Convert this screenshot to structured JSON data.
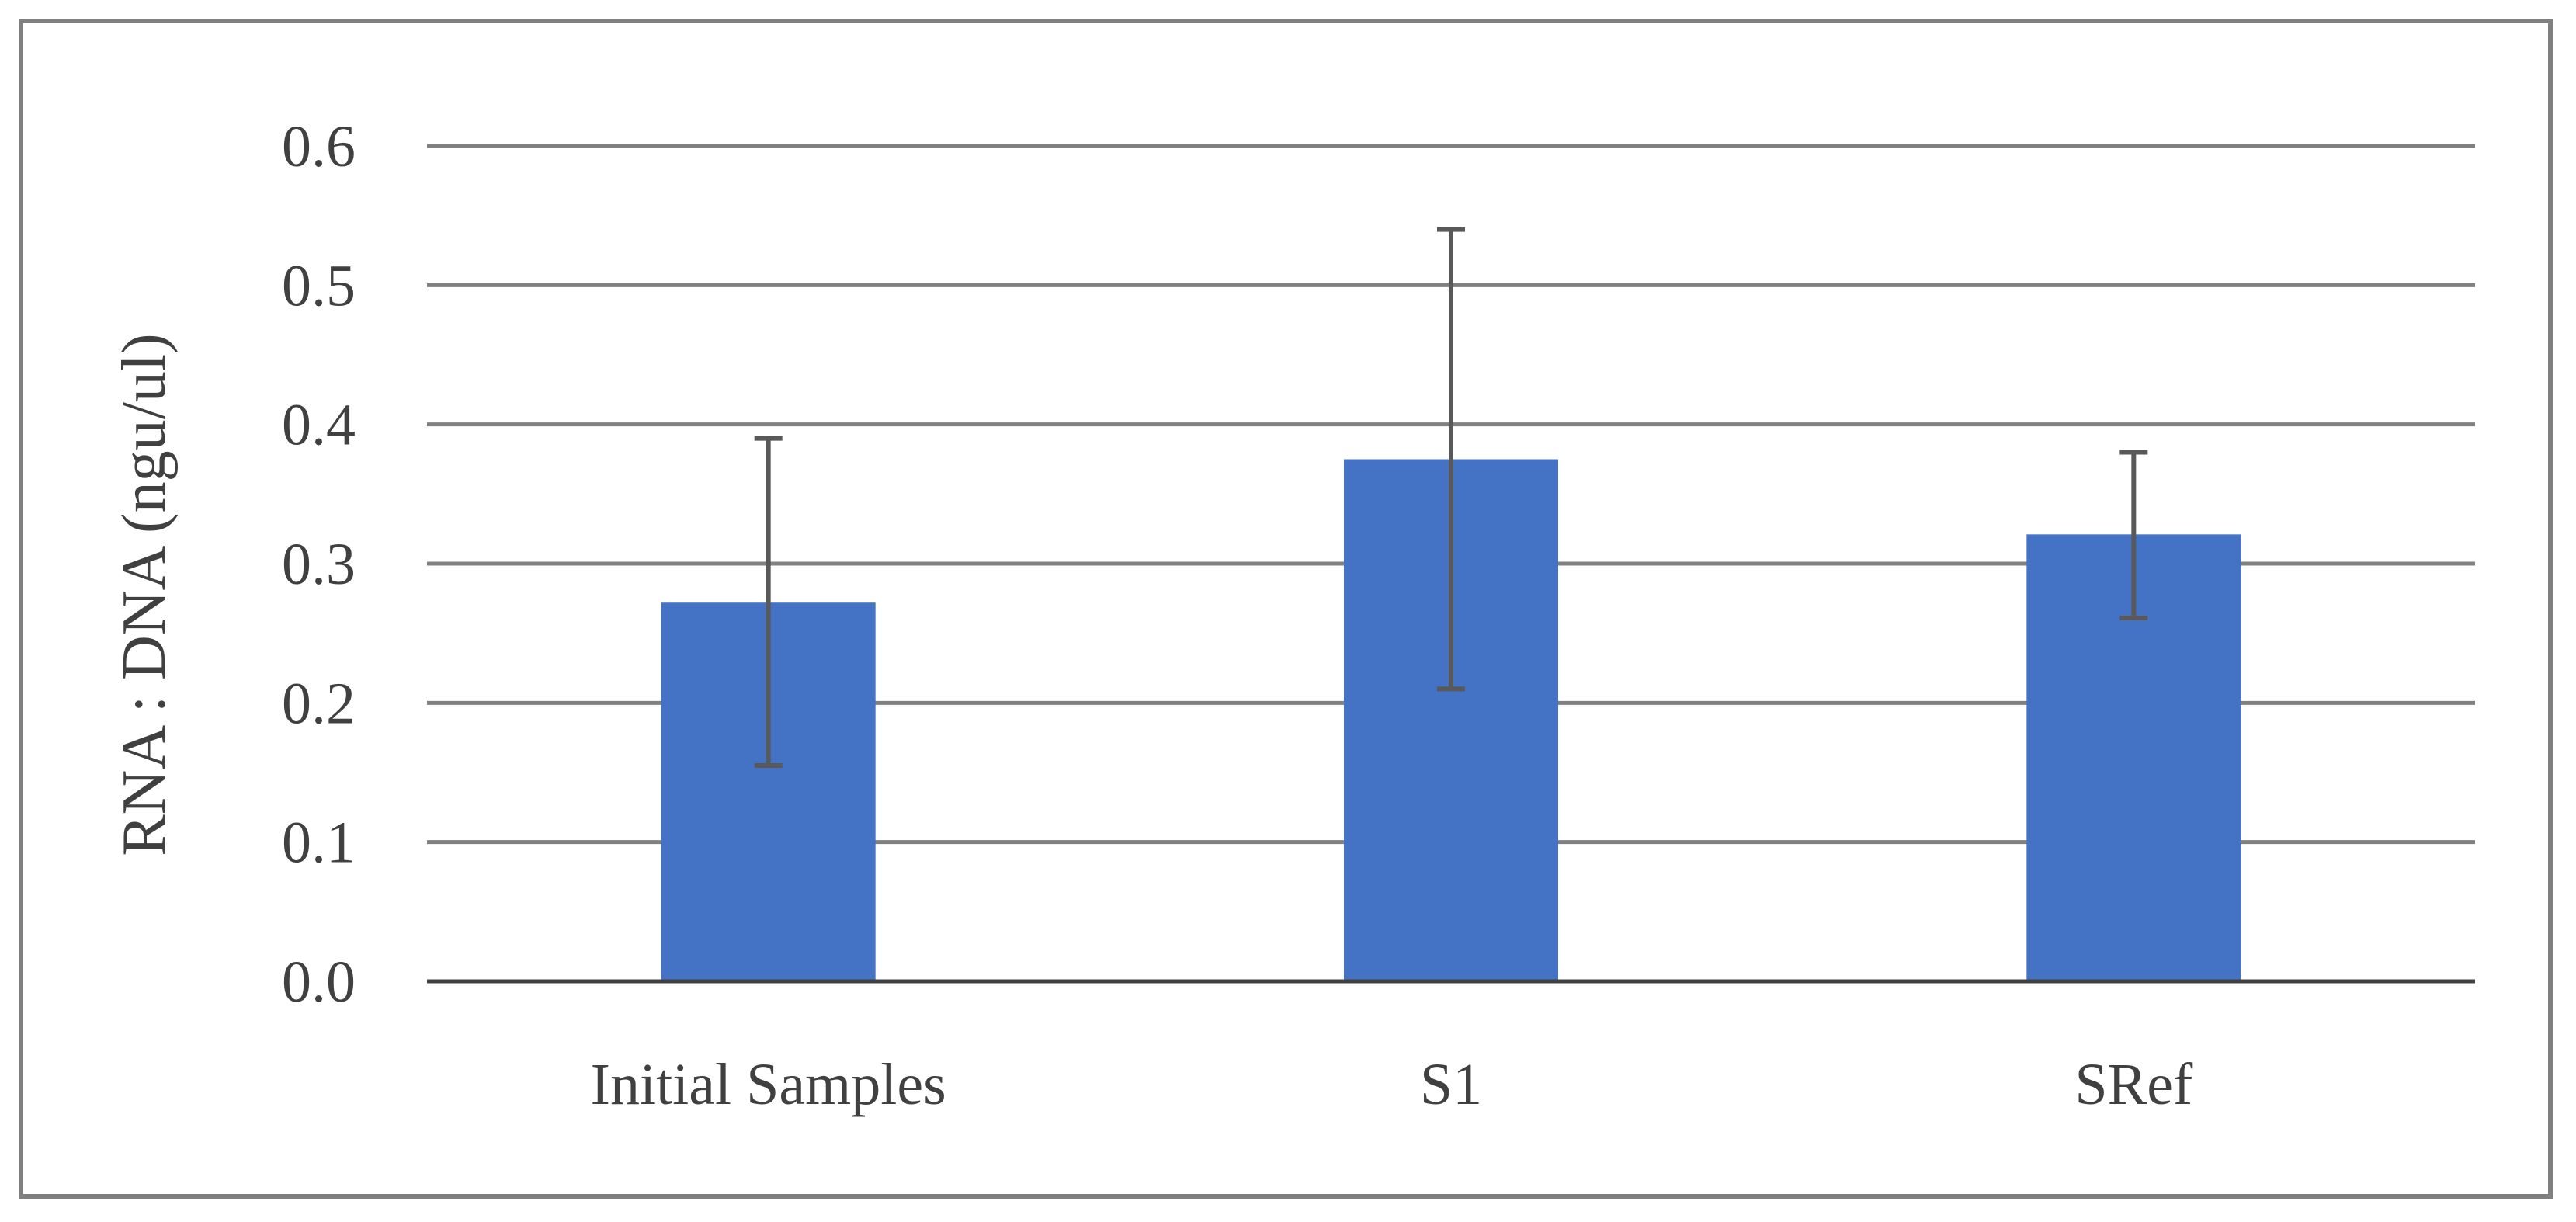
{
  "chart_data": {
    "type": "bar",
    "title": "",
    "xlabel": "",
    "ylabel": "RNA : DNA (ngu/ul)",
    "categories": [
      "Initial Samples",
      "S1",
      "SRef"
    ],
    "values": [
      0.272,
      0.375,
      0.321
    ],
    "error_low": [
      0.155,
      0.21,
      0.261
    ],
    "error_high": [
      0.39,
      0.54,
      0.38
    ],
    "ylim": [
      0,
      0.6
    ],
    "yticks": [
      "0.0",
      "0.1",
      "0.2",
      "0.3",
      "0.4",
      "0.5",
      "0.6"
    ],
    "grid": true,
    "legend": "none",
    "colors": {
      "bar": "#4472C4",
      "grid": "#808080",
      "axis": "#404040",
      "error_bar": "#595959",
      "frame": "#808080"
    }
  }
}
